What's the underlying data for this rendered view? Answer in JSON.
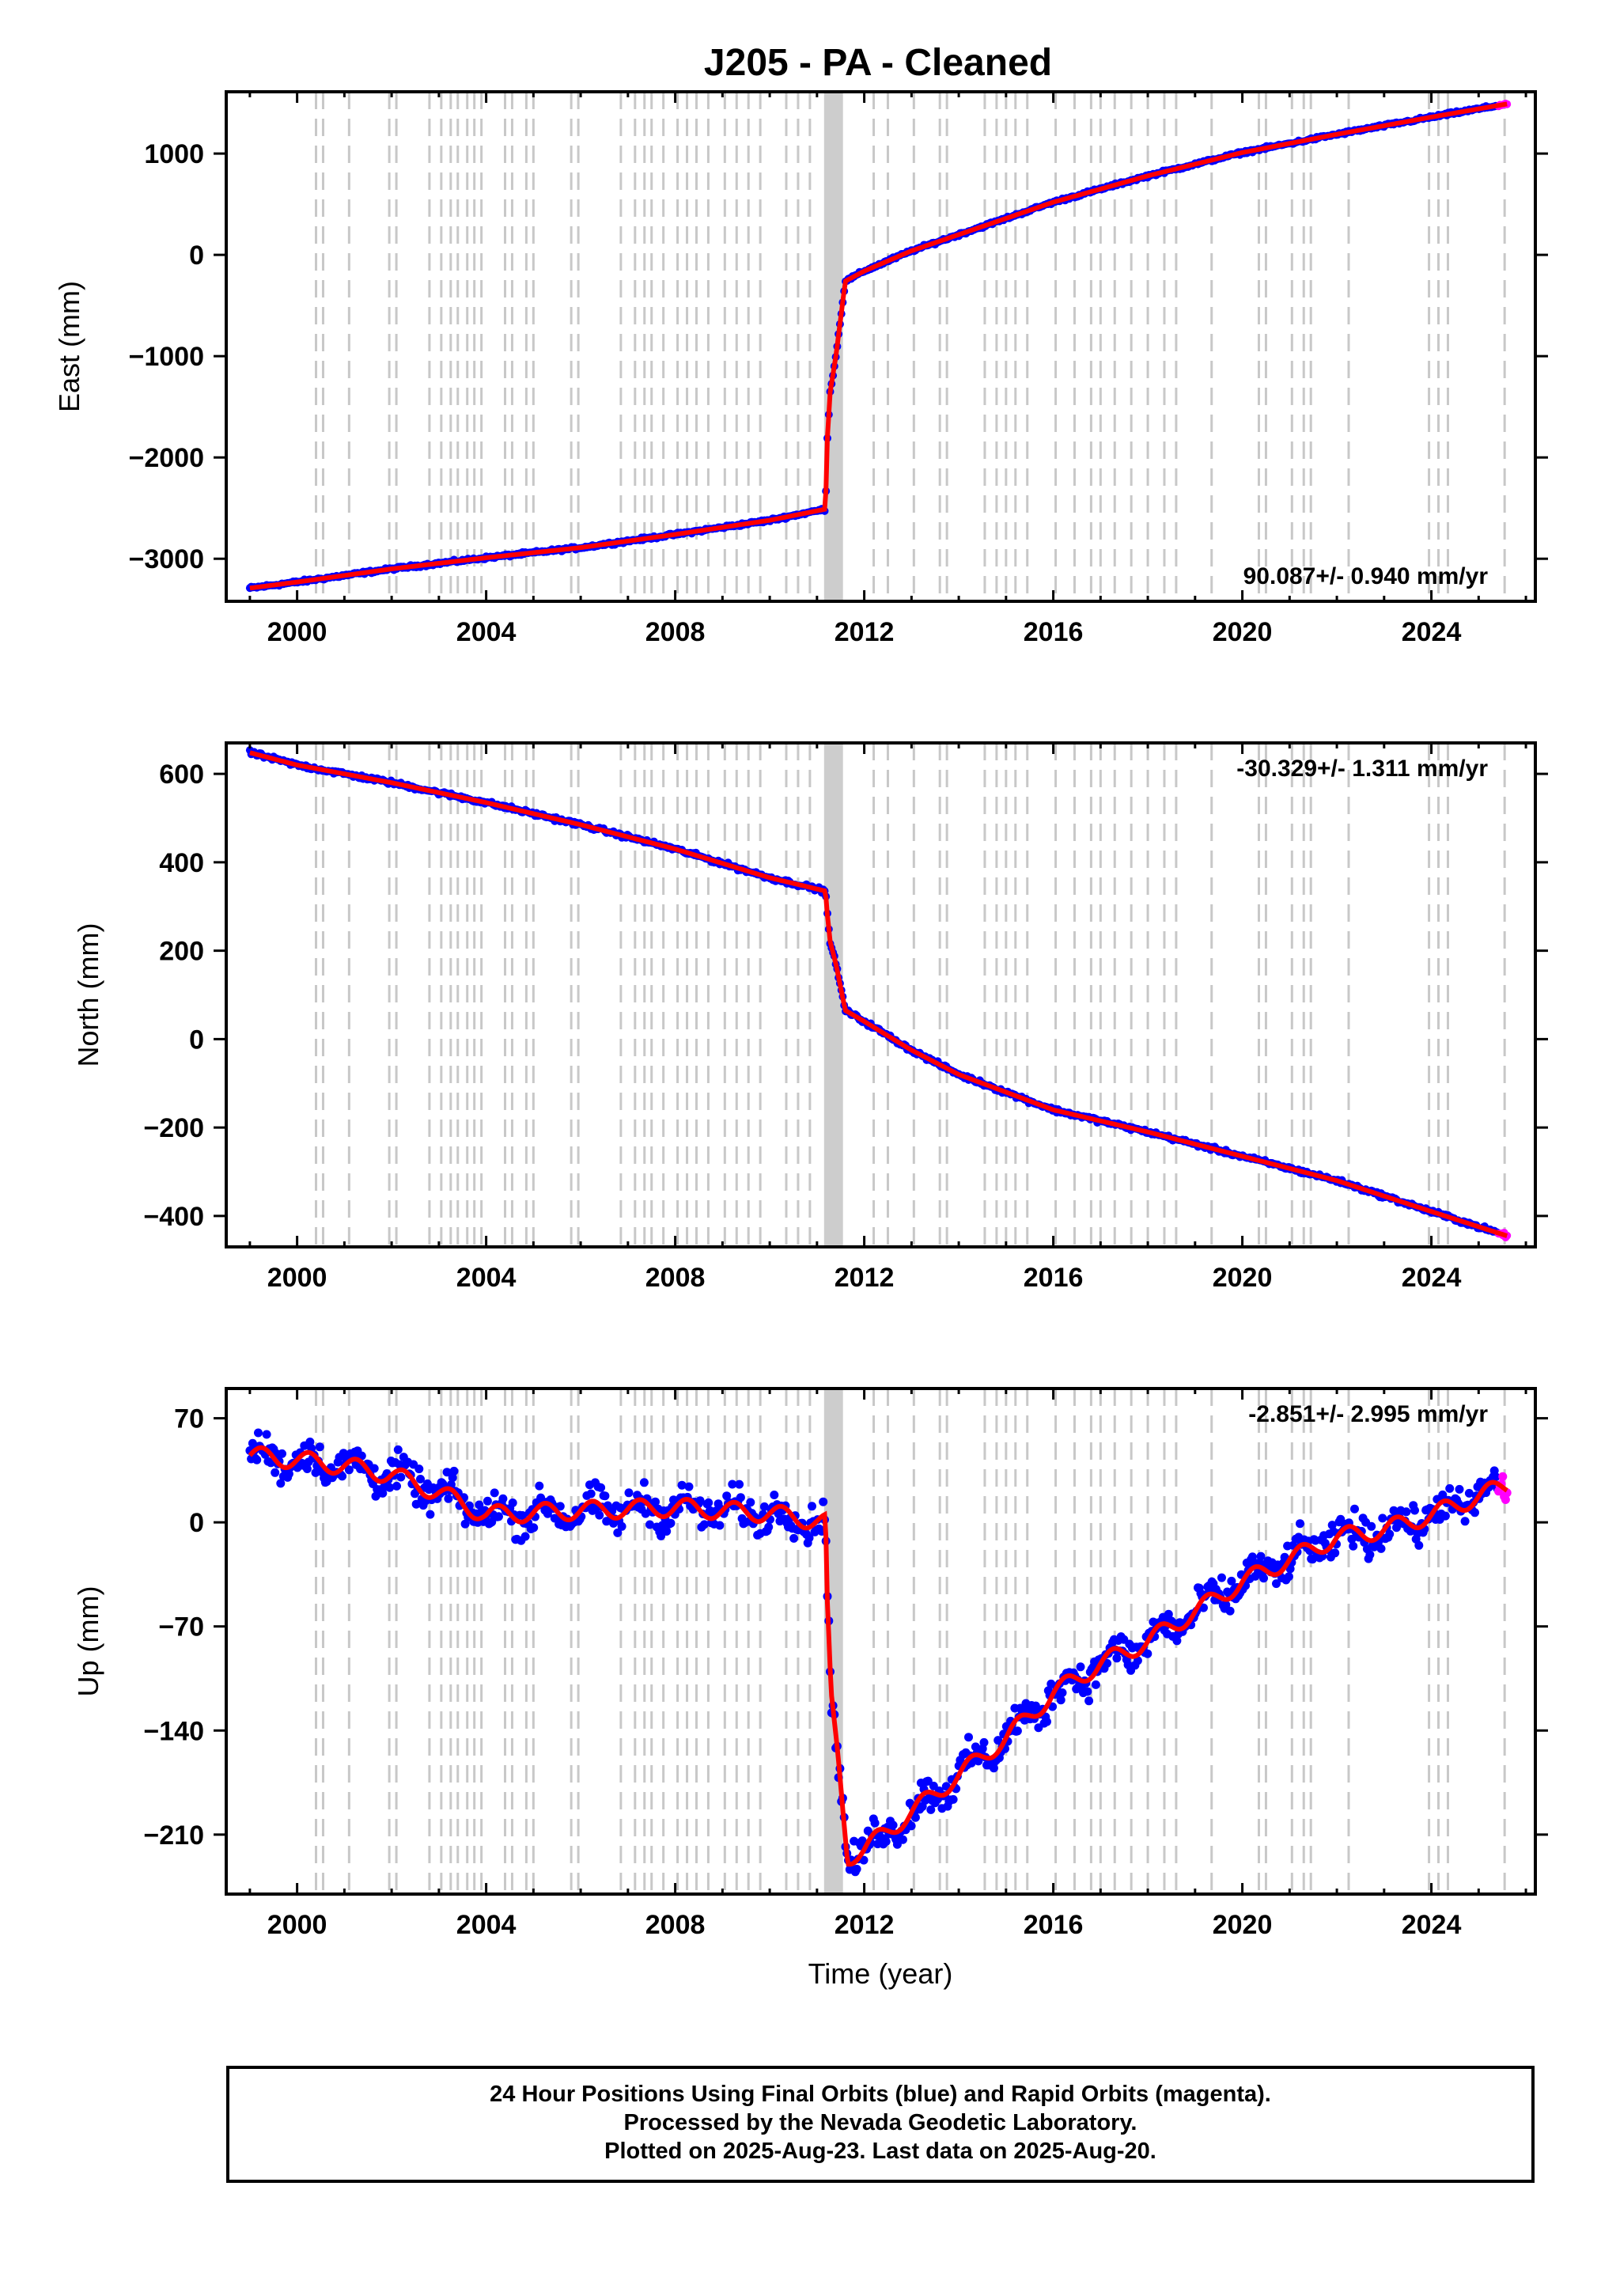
{
  "title": "J205  - PA - Cleaned",
  "xlabel": "Time (year)",
  "colors": {
    "final": "#0000ff",
    "rapid": "#ff00ff",
    "model": "#ff0000",
    "steps": "#c8c8c8"
  },
  "footer": {
    "line1": "24 Hour Positions Using Final Orbits (blue) and Rapid Orbits (magenta).",
    "line2": "Processed by the Nevada Geodetic Laboratory.",
    "line3": "Plotted on 2025-Aug-23. Last data on 2025-Aug-20."
  },
  "chart_data": [
    {
      "type": "scatter",
      "ylabel": "East (mm)",
      "rate_label": "90.087+/- 0.940 mm/yr",
      "rate_position": "bottom-right",
      "xlim": [
        1998.5,
        2026.2
      ],
      "ylim": [
        -3420,
        1610
      ],
      "xticks": [
        2000,
        2004,
        2008,
        2012,
        2016,
        2020,
        2024
      ],
      "yticks": [
        1000,
        0,
        -1000,
        -2000,
        -3000
      ],
      "ytick_labels": [
        "1000",
        "0",
        "−1000",
        "−2000",
        "−3000"
      ],
      "series": [
        {
          "x": [
            1999.0,
            2000.0,
            2002.0,
            2004.0,
            2006.0,
            2008.0,
            2010.0,
            2011.18,
            2011.22,
            2011.28,
            2011.4,
            2011.6,
            2012.0,
            2013.0,
            2014.0,
            2016.0,
            2018.0,
            2020.0,
            2022.0,
            2024.0,
            2025.6
          ],
          "y": [
            -3290,
            -3230,
            -3100,
            -2990,
            -2890,
            -2760,
            -2620,
            -2510,
            -1800,
            -1350,
            -1000,
            -260,
            -160,
            40,
            200,
            520,
            780,
            1010,
            1190,
            1360,
            1490
          ],
          "noise": 12
        }
      ]
    },
    {
      "type": "scatter",
      "ylabel": "North (mm)",
      "rate_label": "-30.329+/- 1.311 mm/yr",
      "rate_position": "top-right",
      "xlim": [
        1998.5,
        2026.2
      ],
      "ylim": [
        -470,
        670
      ],
      "xticks": [
        2000,
        2004,
        2008,
        2012,
        2016,
        2020,
        2024
      ],
      "yticks": [
        600,
        400,
        200,
        0,
        -200,
        -400
      ],
      "ytick_labels": [
        "600",
        "400",
        "200",
        "0",
        "−200",
        "−400"
      ],
      "series": [
        {
          "x": [
            1999.0,
            2000.0,
            2002.0,
            2004.0,
            2006.0,
            2008.0,
            2010.0,
            2011.18,
            2011.22,
            2011.28,
            2011.4,
            2011.6,
            2012.0,
            2013.0,
            2014.0,
            2016.0,
            2018.0,
            2020.0,
            2022.0,
            2024.0,
            2025.6
          ],
          "y": [
            648,
            620,
            580,
            535,
            485,
            430,
            365,
            335,
            280,
            220,
            170,
            65,
            40,
            -25,
            -80,
            -160,
            -210,
            -265,
            -320,
            -390,
            -445
          ],
          "noise": 4
        }
      ]
    },
    {
      "type": "scatter",
      "ylabel": "Up (mm)",
      "rate_label": "-2.851+/- 2.995 mm/yr",
      "rate_position": "top-right",
      "xlim": [
        1998.5,
        2026.2
      ],
      "ylim": [
        -250,
        90
      ],
      "xticks": [
        2000,
        2004,
        2008,
        2012,
        2016,
        2020,
        2024
      ],
      "yticks": [
        70,
        0,
        -70,
        -140,
        -210
      ],
      "ytick_labels": [
        "70",
        "0",
        "−70",
        "−140",
        "−210"
      ],
      "series": [
        {
          "x": [
            1999.0,
            2000.0,
            2001.0,
            2002.0,
            2003.0,
            2004.0,
            2006.0,
            2008.0,
            2010.0,
            2011.18,
            2011.22,
            2011.3,
            2011.45,
            2011.65,
            2012.0,
            2013.0,
            2014.0,
            2015.0,
            2016.0,
            2017.0,
            2018.0,
            2019.0,
            2020.0,
            2021.0,
            2022.0,
            2023.0,
            2024.0,
            2025.6
          ],
          "y": [
            45,
            42,
            38,
            32,
            20,
            5,
            8,
            10,
            6,
            0,
            -60,
            -120,
            -160,
            -225,
            -220,
            -195,
            -170,
            -145,
            -115,
            -95,
            -80,
            -60,
            -40,
            -25,
            -10,
            -5,
            5,
            25
          ],
          "noise": 10
        }
      ]
    }
  ]
}
